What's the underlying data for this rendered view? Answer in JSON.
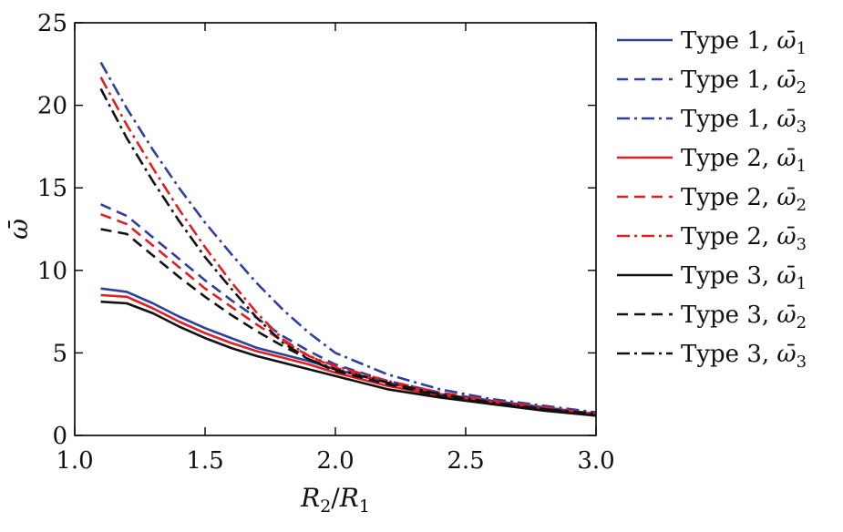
{
  "chart_data": {
    "type": "line",
    "xlabel": "R2/R1",
    "ylabel": "ω̄",
    "xlim": [
      1.0,
      3.0
    ],
    "ylim": [
      0,
      25
    ],
    "xticks": [
      "1.0",
      "1.5",
      "2.0",
      "2.5",
      "3.0"
    ],
    "yticks": [
      "0",
      "5",
      "10",
      "15",
      "20",
      "25"
    ],
    "grid": false,
    "legend_position": "right, outside plot",
    "x": [
      1.1,
      1.2,
      1.3,
      1.4,
      1.5,
      1.6,
      1.7,
      1.8,
      1.9,
      2.0,
      2.2,
      2.4,
      2.6,
      2.8,
      3.0
    ],
    "series": [
      {
        "name": "Type 1, ω̄1",
        "style": "solid",
        "color": "#2e3f9e",
        "values": [
          8.9,
          8.7,
          8.0,
          7.2,
          6.5,
          5.9,
          5.3,
          4.9,
          4.5,
          4.0,
          3.2,
          2.5,
          2.1,
          1.7,
          1.3
        ]
      },
      {
        "name": "Type 1, ω̄2",
        "style": "dashed",
        "color": "#2e3f9e",
        "values": [
          14.0,
          13.3,
          12.0,
          10.7,
          9.4,
          8.2,
          7.1,
          6.0,
          5.1,
          4.3,
          3.3,
          2.6,
          2.1,
          1.7,
          1.3
        ]
      },
      {
        "name": "Type 1, ω̄3",
        "style": "dashdot",
        "color": "#2e3f9e",
        "values": [
          22.6,
          19.8,
          17.3,
          15.0,
          12.9,
          11.0,
          9.2,
          7.6,
          6.2,
          5.0,
          3.7,
          2.8,
          2.2,
          1.8,
          1.4
        ]
      },
      {
        "name": "Type 2, ω̄1",
        "style": "solid",
        "color": "#e02020",
        "values": [
          8.5,
          8.4,
          7.7,
          6.9,
          6.2,
          5.6,
          5.1,
          4.7,
          4.3,
          3.8,
          3.0,
          2.4,
          2.0,
          1.6,
          1.3
        ]
      },
      {
        "name": "Type 2, ω̄2",
        "style": "dashed",
        "color": "#e02020",
        "values": [
          13.4,
          12.8,
          11.5,
          10.2,
          8.9,
          7.8,
          6.7,
          5.7,
          4.8,
          4.1,
          3.2,
          2.5,
          2.0,
          1.6,
          1.3
        ]
      },
      {
        "name": "Type 2, ω̄3",
        "style": "dashdot",
        "color": "#e02020",
        "values": [
          21.7,
          18.8,
          16.2,
          13.7,
          11.4,
          9.3,
          7.4,
          5.8,
          4.8,
          4.2,
          3.3,
          2.6,
          2.1,
          1.7,
          1.3
        ]
      },
      {
        "name": "Type 3, ω̄1",
        "style": "solid",
        "color": "#111111",
        "values": [
          8.1,
          8.0,
          7.4,
          6.6,
          5.9,
          5.3,
          4.8,
          4.4,
          4.0,
          3.6,
          2.8,
          2.3,
          1.9,
          1.5,
          1.2
        ]
      },
      {
        "name": "Type 3, ω̄2",
        "style": "dashed",
        "color": "#111111",
        "values": [
          12.5,
          12.2,
          10.9,
          9.6,
          8.4,
          7.3,
          6.3,
          5.4,
          4.6,
          3.9,
          3.1,
          2.4,
          1.9,
          1.6,
          1.2
        ]
      },
      {
        "name": "Type 3, ω̄3",
        "style": "dashdot",
        "color": "#111111",
        "values": [
          21.0,
          18.0,
          15.4,
          13.0,
          10.8,
          8.9,
          7.1,
          5.6,
          4.6,
          4.0,
          3.2,
          2.5,
          2.0,
          1.6,
          1.3
        ]
      }
    ]
  }
}
